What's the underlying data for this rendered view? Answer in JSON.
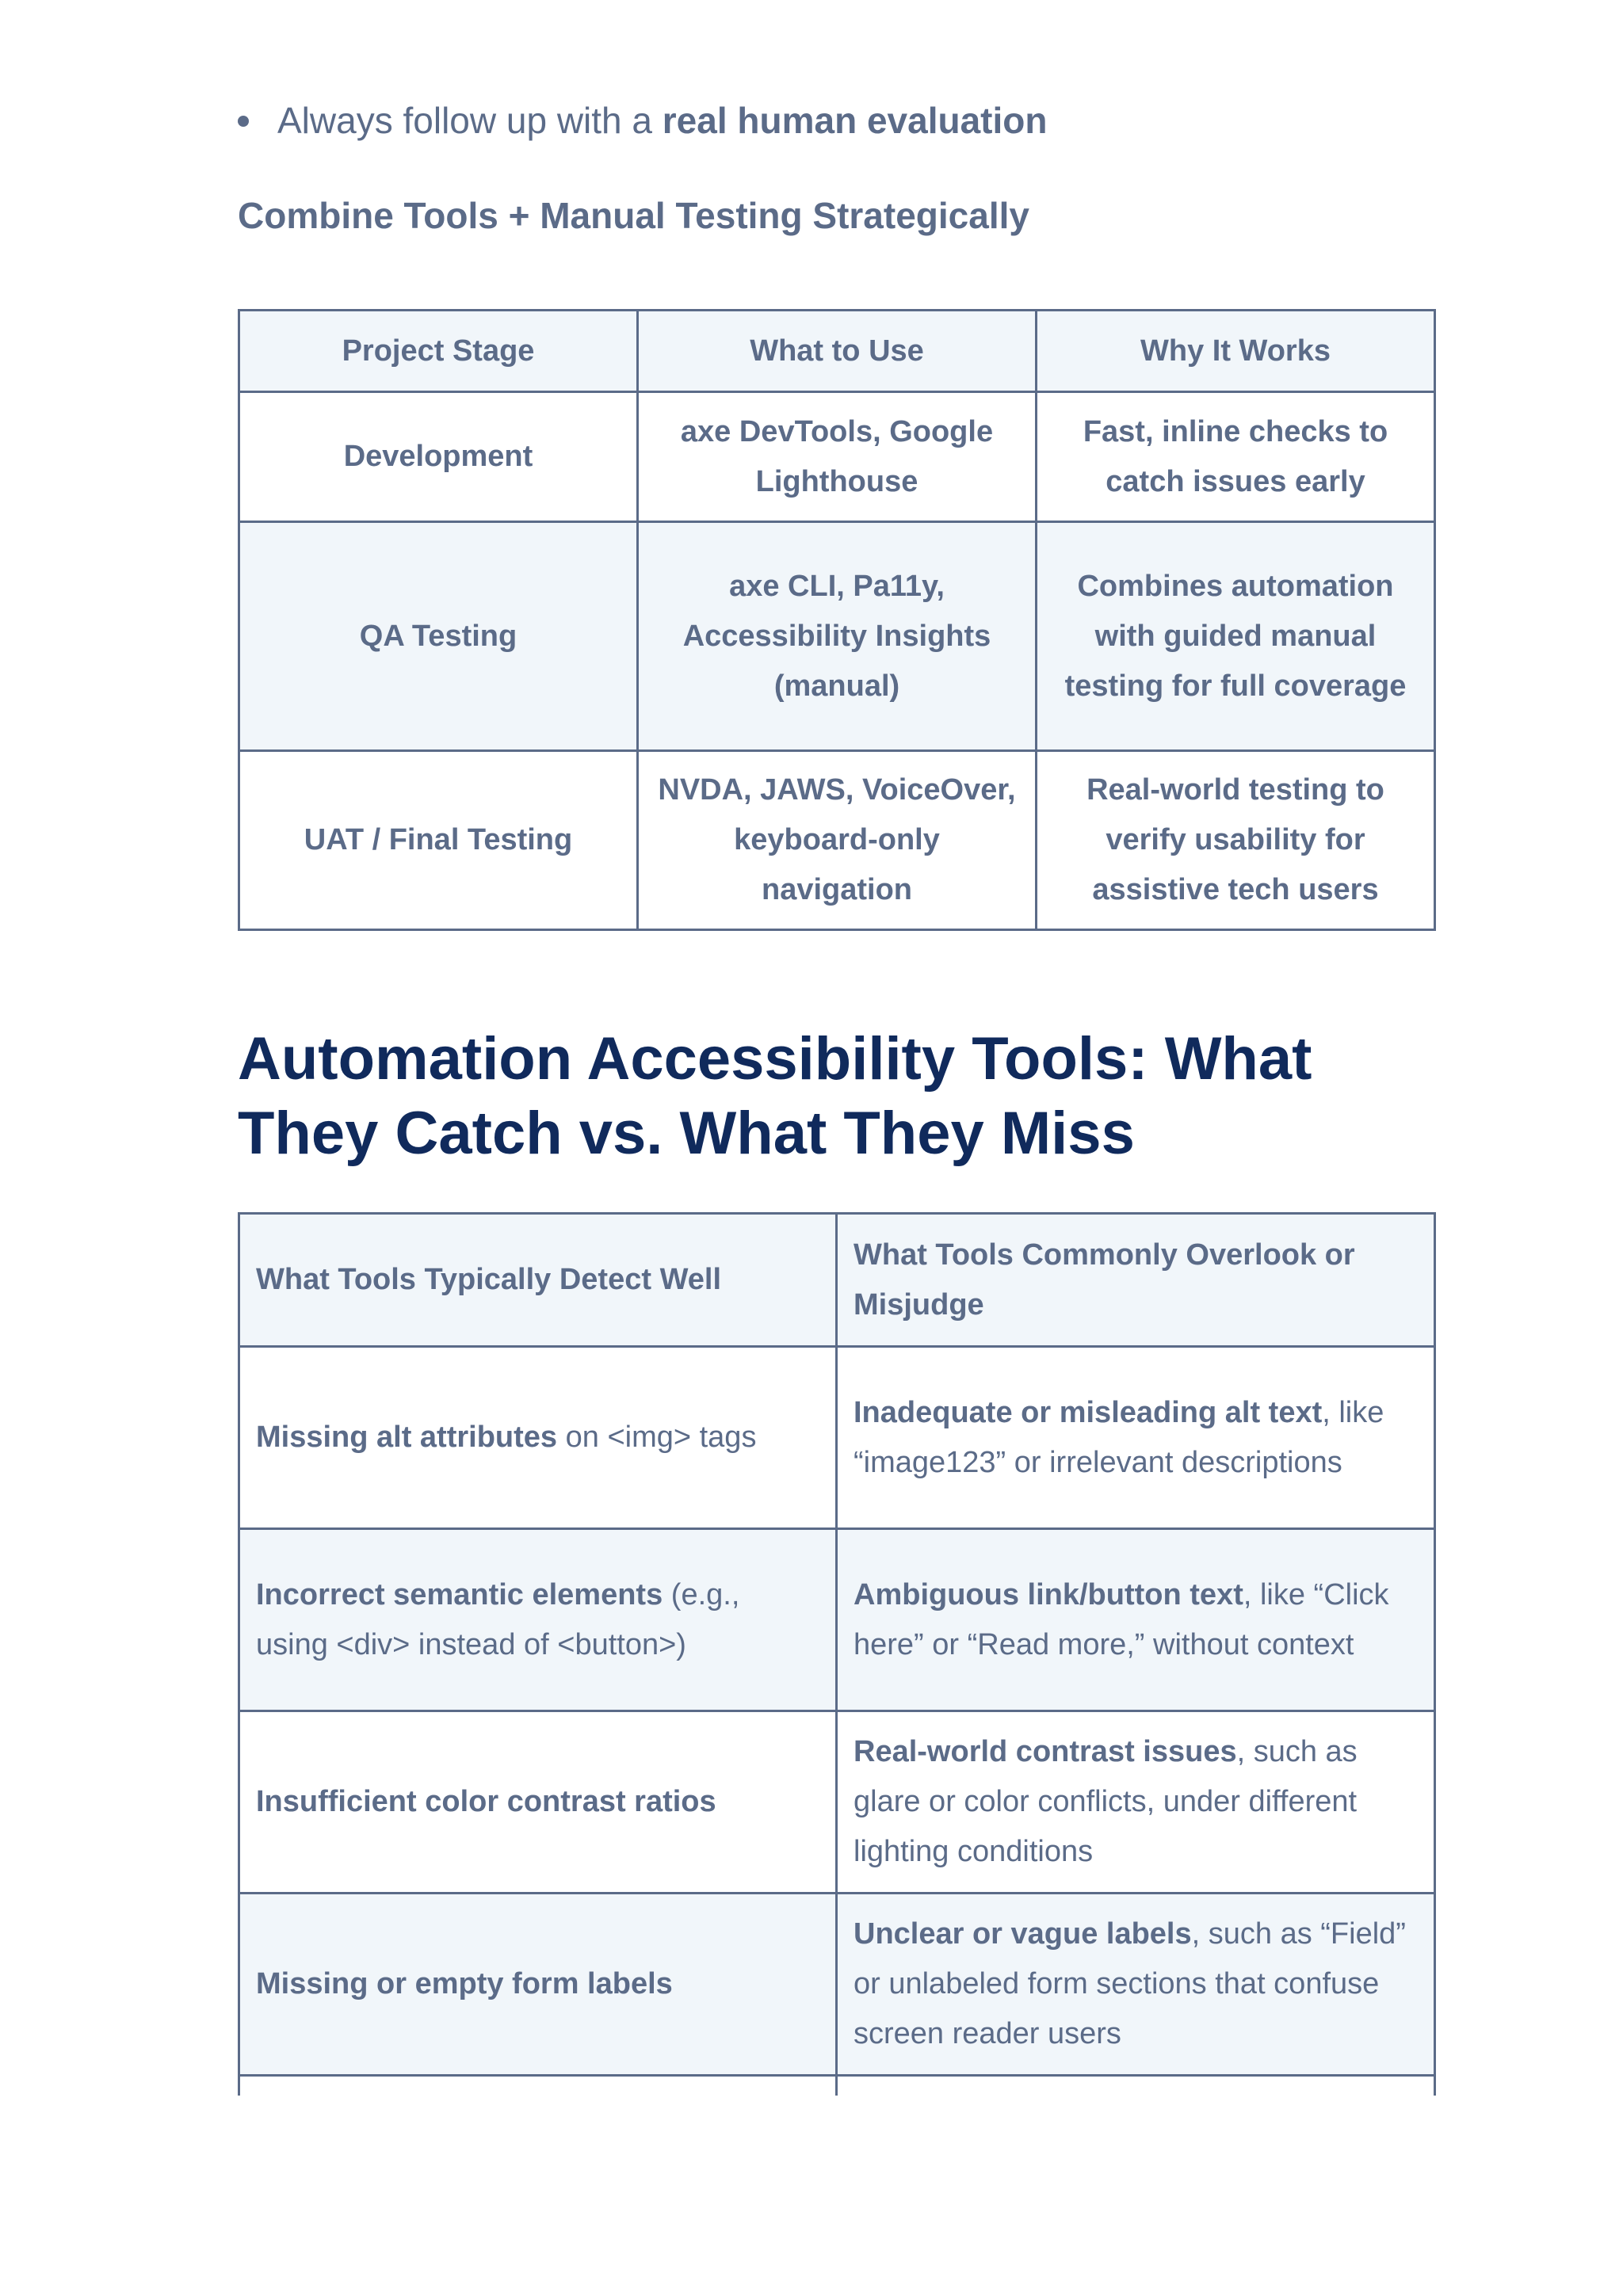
{
  "bullet": {
    "prefix": "Always follow up with a ",
    "emphasis": "real human evaluation"
  },
  "subheading": "Combine Tools + Manual Testing Strategically",
  "stage_table": {
    "headers": [
      "Project Stage",
      "What to Use",
      "Why It Works"
    ],
    "rows": [
      [
        "Development",
        "axe DevTools, Google Lighthouse",
        "Fast, inline checks to catch issues early"
      ],
      [
        "QA Testing",
        "axe CLI, Pa11y, Accessibility Insights (manual)",
        "Combines automation with guided manual testing for full coverage"
      ],
      [
        "UAT / Final Testing",
        "NVDA, JAWS, VoiceOver, keyboard-only navigation",
        "Real-world testing to verify usability for assistive tech users"
      ]
    ]
  },
  "section_heading": "Automation Accessibility Tools: What They Catch vs. What They Miss",
  "compare_table": {
    "headers": [
      "What Tools Typically Detect Well",
      "What Tools Commonly Overlook or Misjudge"
    ],
    "rows": [
      {
        "detect_bold": "Missing alt attributes",
        "detect_rest": " on <img> tags",
        "miss_bold": "Inadequate or misleading alt text",
        "miss_rest": ", like “image123” or irrelevant descriptions"
      },
      {
        "detect_bold": "Incorrect semantic elements",
        "detect_rest": " (e.g., using <div> instead of <button>)",
        "miss_bold": "Ambiguous link/button text",
        "miss_rest": ", like “Click here” or “Read more,” without context"
      },
      {
        "detect_bold": "Insufficient color contrast ratios",
        "detect_rest": "",
        "miss_bold": "Real-world contrast issues",
        "miss_rest": ", such as glare or color conflicts, under different lighting conditions"
      },
      {
        "detect_bold": "Missing or empty form labels",
        "detect_rest": "",
        "miss_bold": "Unclear or vague labels",
        "miss_rest": ", such as “Field” or unlabeled form sections that confuse screen reader users"
      }
    ]
  },
  "colors": {
    "body_text": "#5b6b88",
    "heading": "#102a5c",
    "table_tint": "#f1f6fa",
    "border": "#5b6b88"
  }
}
